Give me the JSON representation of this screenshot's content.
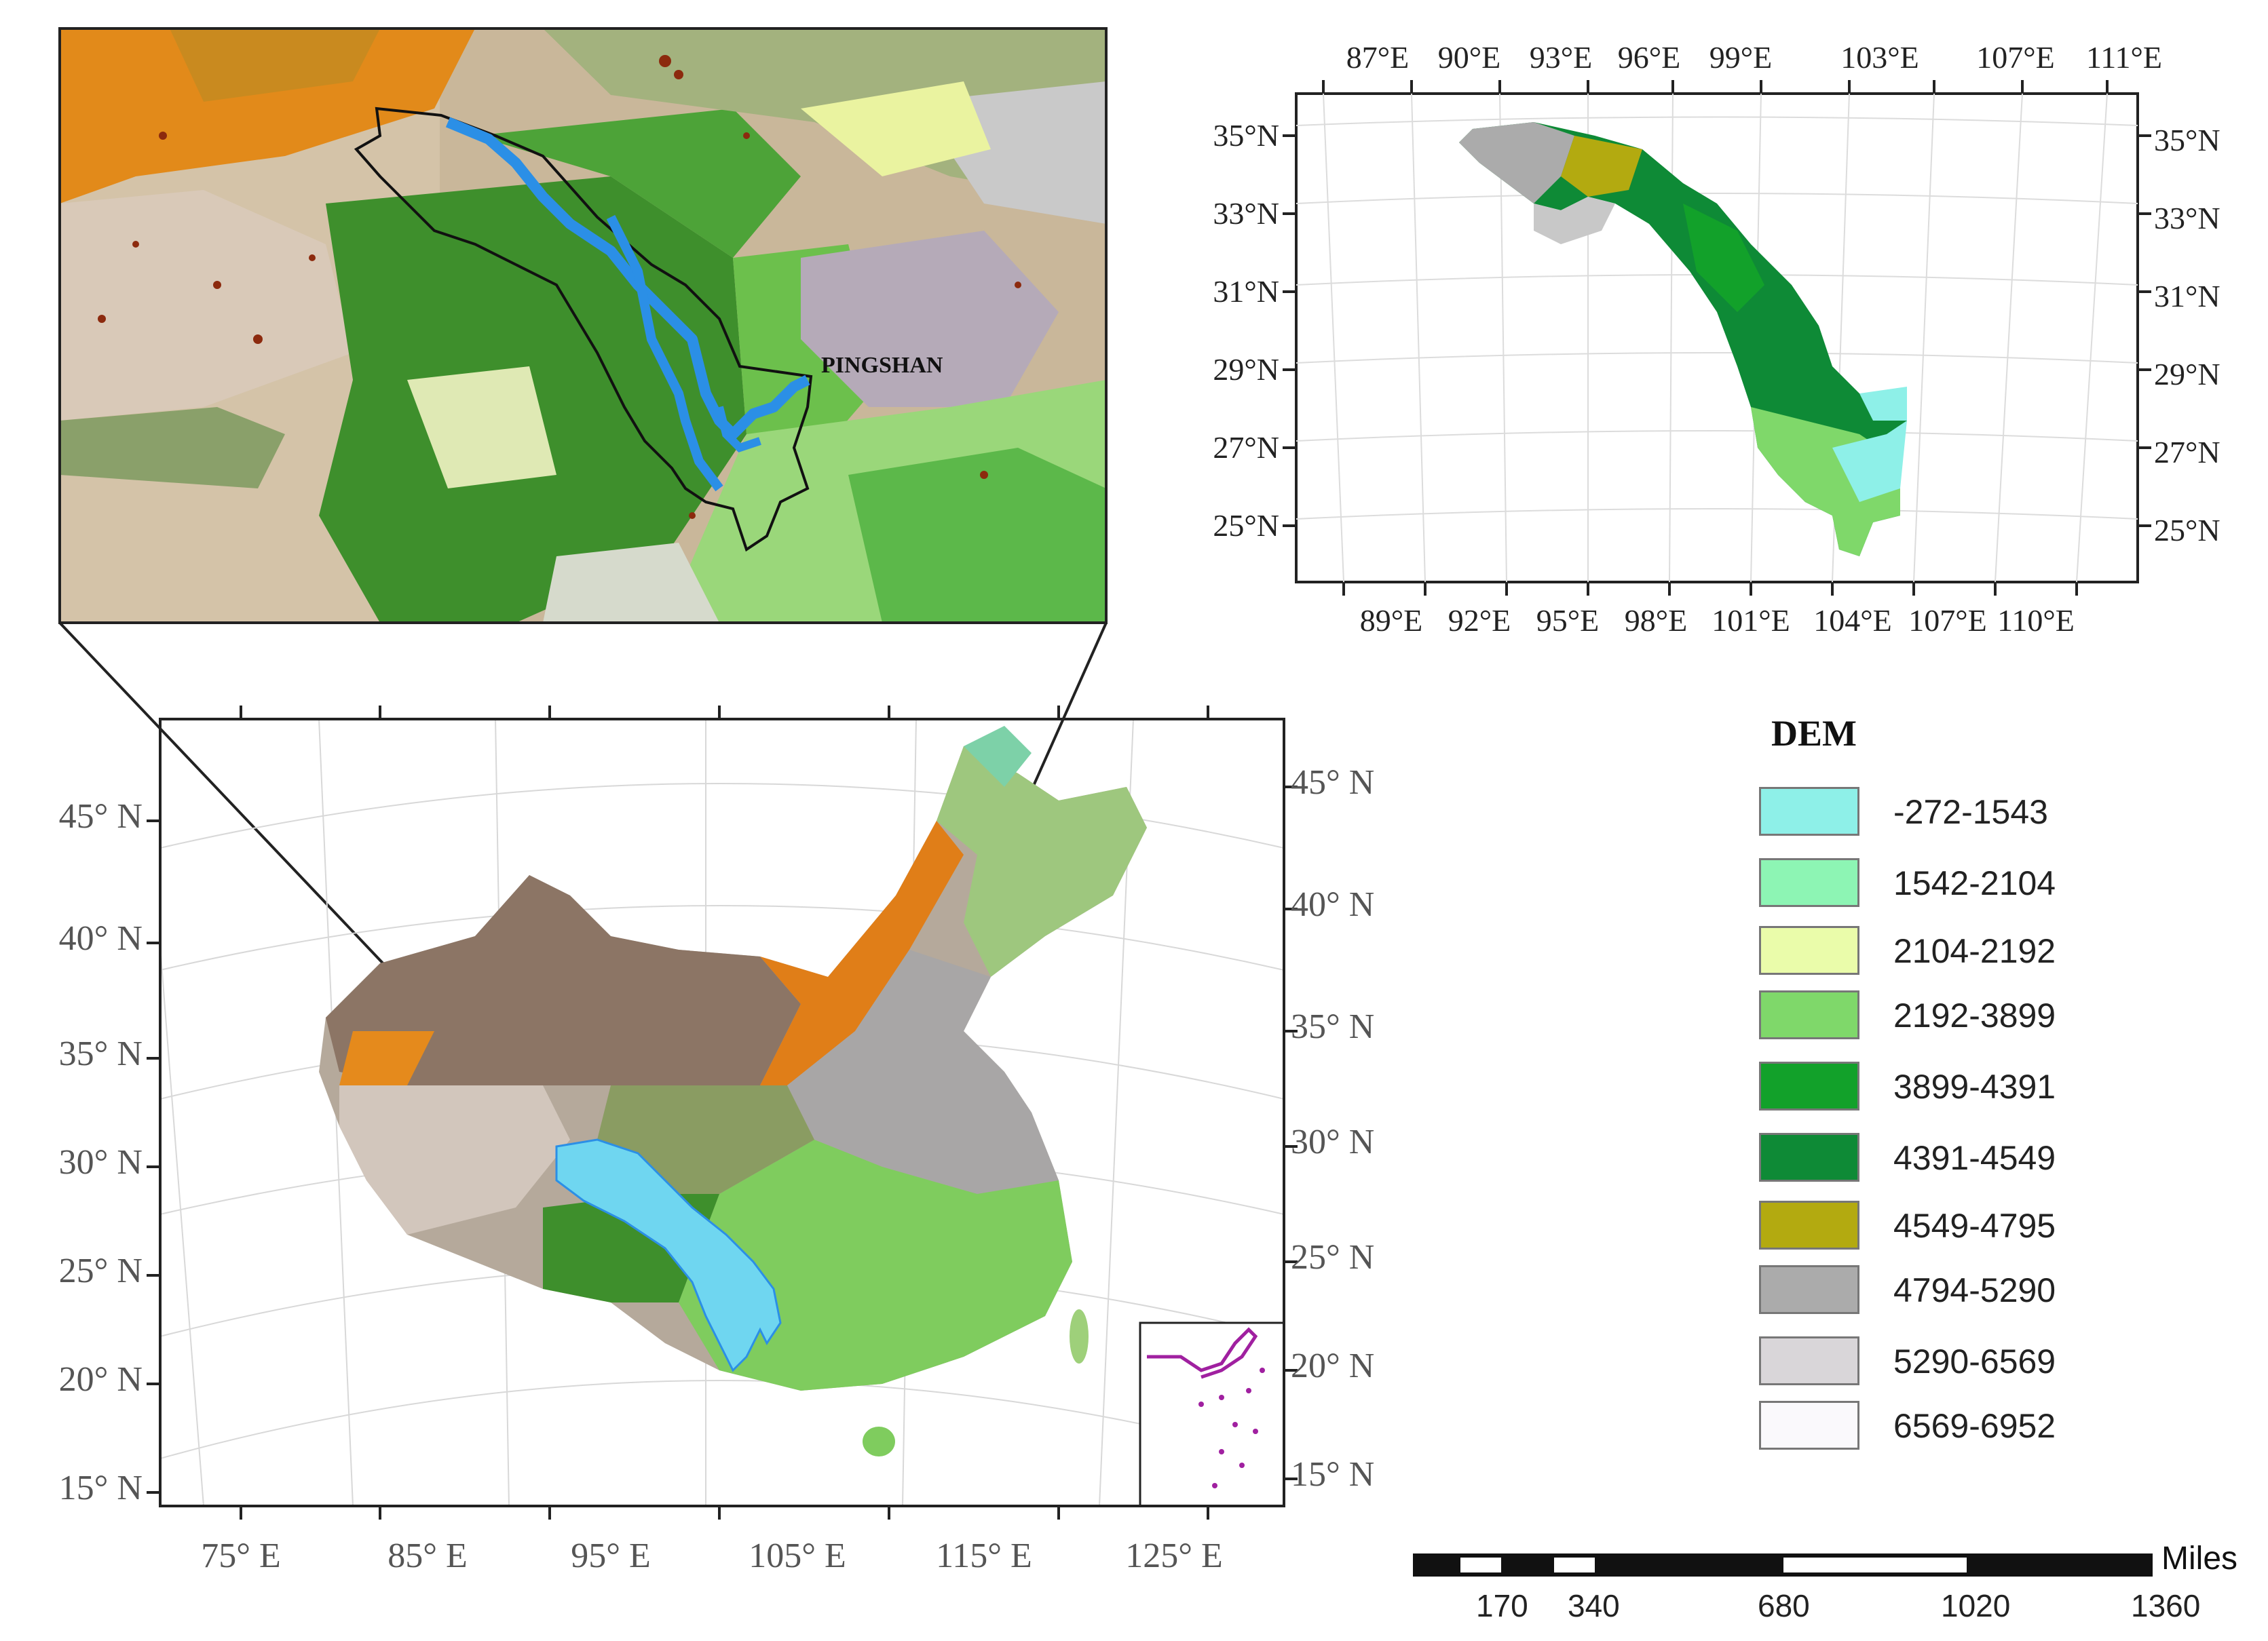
{
  "colors": {
    "basin_fill": "#6fd6f0",
    "river": "#2b8fe6",
    "basin_outline": "#111111",
    "sea_outline": "#a020a0"
  },
  "overview_map": {
    "lat_labels_left": [
      "45° N",
      "40° N",
      "35° N",
      "30° N",
      "25° N",
      "20° N",
      "15° N"
    ],
    "lat_labels_right": [
      "45° N",
      "40° N",
      "35° N",
      "30° N",
      "25° N",
      "20° N",
      "15° N"
    ],
    "lon_labels_bottom": [
      "75° E",
      "85° E",
      "95° E",
      "105° E",
      "115° E",
      "125° E"
    ]
  },
  "basin_map": {
    "lon_labels_top": [
      "87°E",
      "90°E",
      "93°E",
      "96°E",
      "99°E",
      "103°E",
      "107°E",
      "111°E"
    ],
    "lon_labels_bottom": [
      "89°E",
      "92°E",
      "95°E",
      "98°E",
      "101°E",
      "104°E",
      "107°E",
      "110°E"
    ],
    "lat_labels_left": [
      "35°N",
      "33°N",
      "31°N",
      "29°N",
      "27°N",
      "25°N"
    ],
    "lat_labels_right": [
      "35°N",
      "33°N",
      "31°N",
      "29°N",
      "27°N",
      "25°N"
    ]
  },
  "zoom_map": {
    "station_label": "PINGSHAN"
  },
  "legend": {
    "title": "DEM",
    "items": [
      {
        "label": "-272-1543",
        "color": "#8ef0e8"
      },
      {
        "label": "1542-2104",
        "color": "#8df5b4"
      },
      {
        "label": "2104-2192",
        "color": "#eafcaa"
      },
      {
        "label": "2192-3899",
        "color": "#7fd86a"
      },
      {
        "label": "3899-4391",
        "color": "#12a12a"
      },
      {
        "label": "4391-4549",
        "color": "#0e8a36"
      },
      {
        "label": "4549-4795",
        "color": "#b3aa10"
      },
      {
        "label": "4794-5290",
        "color": "#ababab"
      },
      {
        "label": "5290-6569",
        "color": "#d9d6d9"
      },
      {
        "label": "6569-6952",
        "color": "#faf9fc"
      }
    ]
  },
  "scale_bar": {
    "unit": "Miles",
    "ticks": [
      "170",
      "340",
      "680",
      "1020",
      "1360"
    ]
  }
}
